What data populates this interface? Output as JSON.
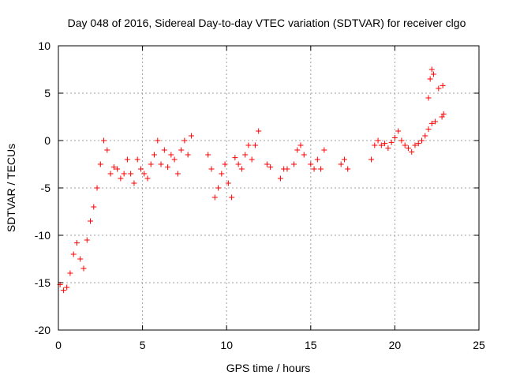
{
  "chart_data": {
    "type": "scatter",
    "title": "Day 048 of 2016, Sidereal Day-to-day VTEC variation (SDTVAR) for receiver clgo",
    "xlabel": "GPS time / hours",
    "ylabel": "SDTVAR / TECUs",
    "xlim": [
      0,
      25
    ],
    "ylim": [
      -20,
      10
    ],
    "x_ticks": [
      0,
      5,
      10,
      15,
      20,
      25
    ],
    "y_ticks": [
      -20,
      -15,
      -10,
      -5,
      0,
      5,
      10
    ],
    "x_tick_labels": [
      "0",
      "5",
      "10",
      "15",
      "20",
      "25"
    ],
    "y_tick_labels": [
      "-20",
      "-15",
      "-10",
      "-5",
      "0",
      "5",
      "10"
    ],
    "grid": true,
    "marker": "+",
    "marker_color": "#ff0000",
    "series": [
      {
        "name": "SDTVAR",
        "x": [
          0.1,
          0.3,
          0.5,
          0.7,
          0.9,
          1.1,
          1.3,
          1.5,
          1.7,
          1.9,
          2.1,
          2.3,
          2.5,
          2.7,
          2.9,
          3.1,
          3.3,
          3.5,
          3.7,
          3.9,
          4.1,
          4.3,
          4.5,
          4.7,
          4.9,
          5.1,
          5.3,
          5.5,
          5.7,
          5.9,
          6.1,
          6.3,
          6.5,
          6.7,
          6.9,
          7.1,
          7.3,
          7.5,
          7.7,
          7.9,
          8.9,
          9.1,
          9.3,
          9.5,
          9.7,
          9.9,
          10.1,
          10.3,
          10.5,
          10.7,
          10.9,
          11.1,
          11.3,
          11.5,
          11.7,
          11.9,
          12.4,
          12.6,
          13.2,
          13.4,
          13.6,
          14.0,
          14.2,
          14.4,
          14.6,
          15.0,
          15.2,
          15.4,
          15.6,
          15.8,
          16.8,
          17.0,
          17.2,
          18.6,
          18.8,
          19.0,
          19.2,
          19.4,
          19.6,
          19.8,
          20.0,
          20.2,
          20.4,
          20.6,
          20.8,
          21.0,
          21.2,
          21.4,
          21.6,
          21.8,
          22.0,
          22.2,
          22.4,
          22.6,
          22.8,
          22.9
        ],
        "y": [
          -15.2,
          -15.8,
          -15.5,
          -14.0,
          -12.0,
          -10.8,
          -12.5,
          -13.5,
          -10.5,
          -8.5,
          -7.0,
          -5.0,
          -2.5,
          0.0,
          -1.0,
          -3.5,
          -2.8,
          -3.0,
          -4.0,
          -3.5,
          -2.0,
          -3.5,
          -4.5,
          -2.0,
          -3.0,
          -3.5,
          -4.0,
          -2.5,
          -1.5,
          0.0,
          -2.5,
          -1.0,
          -2.8,
          -1.5,
          -2.0,
          -3.5,
          -1.0,
          0.0,
          -1.5,
          0.5,
          -1.5,
          -3.0,
          -6.0,
          -5.0,
          -3.5,
          -2.5,
          -4.5,
          -6.0,
          -1.8,
          -2.5,
          -3.0,
          -1.5,
          -0.5,
          -2.0,
          -0.5,
          1.0,
          -2.5,
          -2.8,
          -4.0,
          -3.0,
          -3.0,
          -2.5,
          -1.0,
          -0.5,
          -1.5,
          -2.5,
          -3.0,
          -2.0,
          -3.0,
          -1.0,
          -2.5,
          -2.0,
          -3.0,
          -2.0,
          -0.5,
          0.0,
          -0.5,
          -0.3,
          -0.8,
          -0.2,
          0.3,
          1.0,
          0.0,
          -0.5,
          -0.8,
          -1.2,
          -0.5,
          -0.3,
          0.0,
          0.5,
          1.2,
          1.8,
          2.0,
          5.5,
          2.5,
          2.8
        ]
      }
    ],
    "scattered_points": [
      {
        "x": 22.2,
        "y": 7.5
      },
      {
        "x": 22.3,
        "y": 7.0
      },
      {
        "x": 22.1,
        "y": 6.5
      },
      {
        "x": 22.0,
        "y": 4.5
      },
      {
        "x": 22.85,
        "y": 5.8
      }
    ]
  }
}
